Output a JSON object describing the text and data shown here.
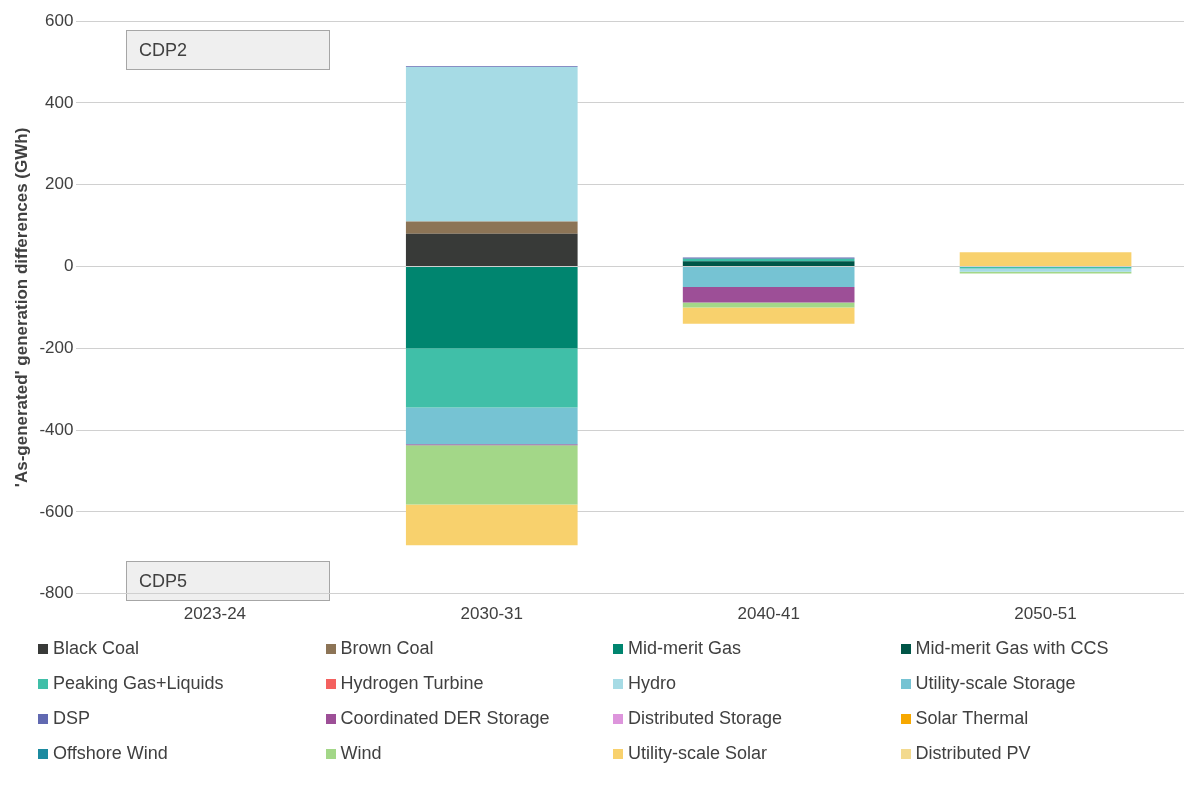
{
  "chart_data": {
    "type": "bar",
    "stacked": true,
    "ylabel": "'As-generated' generation differences (GWh)",
    "categories": [
      "2023-24",
      "2030-31",
      "2040-41",
      "2050-51"
    ],
    "ylim": [
      -800,
      600
    ],
    "yticks": [
      -800,
      -600,
      -400,
      -200,
      0,
      200,
      400,
      600
    ],
    "grid": "y",
    "legend": "bottom",
    "annotations": [
      "CDP2",
      "CDP5"
    ],
    "series": [
      {
        "name": "Black Coal",
        "color": "#383a38",
        "values": [
          null,
          80,
          null,
          null
        ]
      },
      {
        "name": "Brown Coal",
        "color": "#8c7456",
        "values": [
          null,
          30,
          null,
          null
        ]
      },
      {
        "name": "Mid-merit Gas",
        "color": "#00856f",
        "values": [
          null,
          -200,
          null,
          null
        ]
      },
      {
        "name": "Mid-merit Gas with CCS",
        "color": "#005547",
        "values": [
          null,
          null,
          13,
          null
        ]
      },
      {
        "name": "Peaking Gas+Liquids",
        "color": "#40bfa8",
        "values": [
          null,
          -145,
          6,
          -5
        ]
      },
      {
        "name": "Hydrogen Turbine",
        "color": "#f4615f",
        "values": [
          null,
          null,
          null,
          null
        ]
      },
      {
        "name": "Hydro",
        "color": "#a6dbe5",
        "values": [
          null,
          378,
          null,
          -8
        ]
      },
      {
        "name": "Utility-scale Storage",
        "color": "#76c3d3",
        "values": [
          null,
          -90,
          -50,
          null
        ]
      },
      {
        "name": "DSP",
        "color": "#6169b1",
        "values": [
          null,
          2,
          3,
          null
        ]
      },
      {
        "name": "Coordinated DER Storage",
        "color": "#9d4f97",
        "values": [
          null,
          -2,
          -38,
          null
        ]
      },
      {
        "name": "Distributed Storage",
        "color": "#dd95dc",
        "values": [
          null,
          null,
          null,
          null
        ]
      },
      {
        "name": "Solar Thermal",
        "color": "#f7a800",
        "values": [
          null,
          null,
          null,
          null
        ]
      },
      {
        "name": "Offshore Wind",
        "color": "#1b8aa0",
        "values": [
          null,
          null,
          null,
          null
        ]
      },
      {
        "name": "Wind",
        "color": "#a3d788",
        "values": [
          null,
          -145,
          -12,
          -4
        ]
      },
      {
        "name": "Utility-scale Solar",
        "color": "#f8d16d",
        "values": [
          null,
          -100,
          -40,
          35
        ]
      },
      {
        "name": "Distributed PV",
        "color": "#f3da8f",
        "values": [
          null,
          null,
          null,
          null
        ]
      }
    ]
  }
}
